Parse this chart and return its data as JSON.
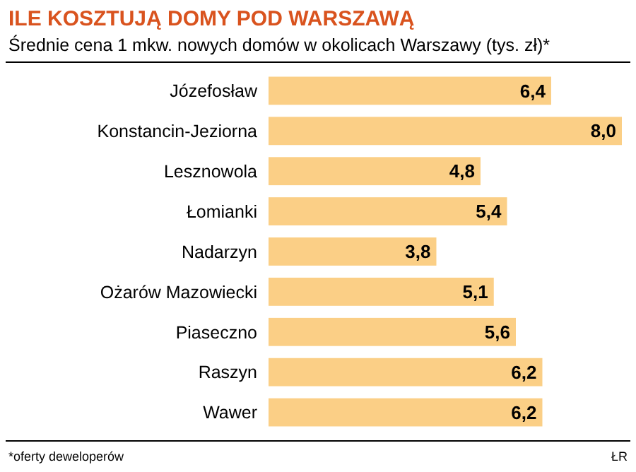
{
  "chart_data": {
    "type": "bar",
    "orientation": "horizontal",
    "title": "ILE KOSZTUJĄ DOMY POD WARSZAWĄ",
    "subtitle": "Średnie cena 1 mkw. nowych domów w okolicach Warszawy (tys. zł)*",
    "categories": [
      "Józefosław",
      "Konstancin-Jeziorna",
      "Lesznowola",
      "Łomianki",
      "Nadarzyn",
      "Ożarów Mazowiecki",
      "Piaseczno",
      "Raszyn",
      "Wawer"
    ],
    "values": [
      6.4,
      8.0,
      4.8,
      5.4,
      3.8,
      5.1,
      5.6,
      6.2,
      6.2
    ],
    "value_labels": [
      "6,4",
      "8,0",
      "4,8",
      "5,4",
      "3,8",
      "5,1",
      "5,6",
      "6,2",
      "6,2"
    ],
    "color": "#fbcf86",
    "annotations": [
      "*oferty deweloperów",
      "ŁR"
    ]
  }
}
